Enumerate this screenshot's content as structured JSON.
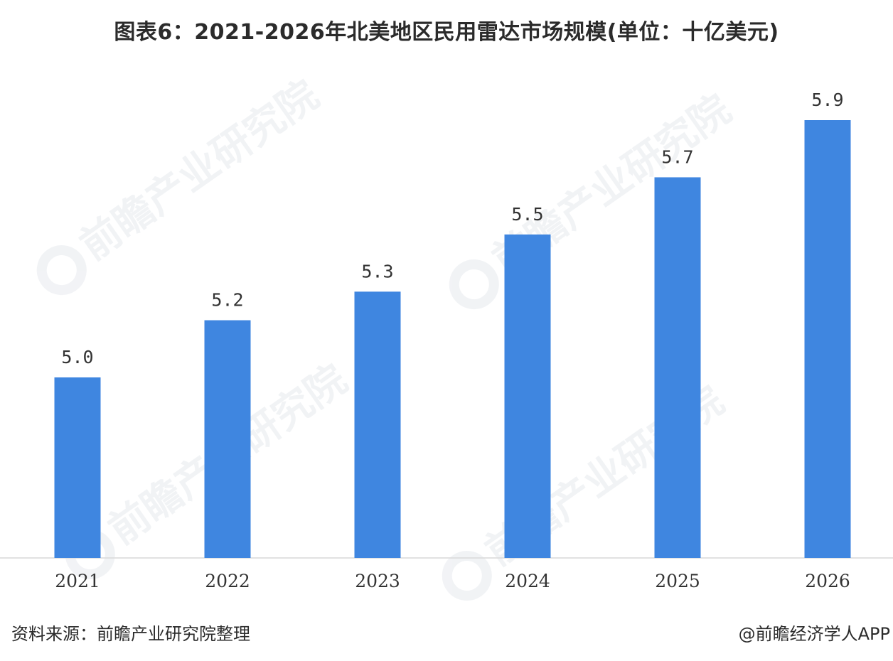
{
  "title": "图表6：2021-2026年北美地区民用雷达市场规模(单位：十亿美元)",
  "footer": {
    "source": "资料来源：前瞻产业研究院整理",
    "brand": "@前瞻经济学人APP"
  },
  "watermark": {
    "text": "前瞻产业研究院"
  },
  "colors": {
    "bar": "#3f86e0",
    "axis": "#d9d9d9",
    "label": "#333333"
  },
  "chart_data": {
    "type": "bar",
    "title": "图表6：2021-2026年北美地区民用雷达市场规模(单位：十亿美元)",
    "categories": [
      "2021",
      "2022",
      "2023",
      "2024",
      "2025",
      "2026"
    ],
    "values": [
      5.0,
      5.2,
      5.3,
      5.5,
      5.7,
      5.9
    ],
    "value_labels": [
      "5.0",
      "5.2",
      "5.3",
      "5.5",
      "5.7",
      "5.9"
    ],
    "xlabel": "",
    "ylabel": "",
    "grid": false,
    "legend": "none"
  }
}
